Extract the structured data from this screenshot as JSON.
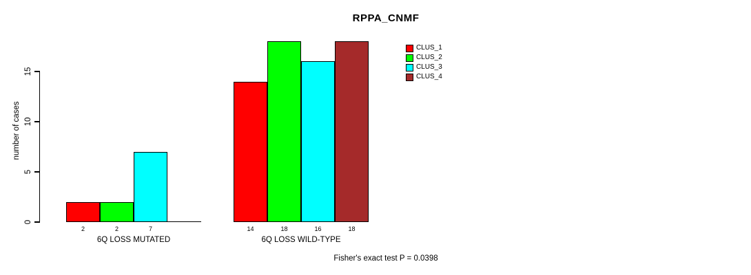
{
  "title": "RPPA_CNMF",
  "y_axis": {
    "label": "number of cases"
  },
  "footnote": "Fisher's exact test P = 0.0398",
  "legend": {
    "entries": [
      {
        "label": "CLUS_1",
        "color": "#FF0000"
      },
      {
        "label": "CLUS_2",
        "color": "#00FF00"
      },
      {
        "label": "CLUS_3",
        "color": "#00FFFF"
      },
      {
        "label": "CLUS_4",
        "color": "#A52A2A"
      }
    ]
  },
  "chart_data": {
    "type": "bar",
    "title": "RPPA_CNMF",
    "ylabel": "number of cases",
    "xlabel": "",
    "ylim": [
      0,
      15
    ],
    "yticks": [
      0,
      5,
      10,
      15
    ],
    "grid": false,
    "legend_position": "top-right",
    "series": [
      "CLUS_1",
      "CLUS_2",
      "CLUS_3",
      "CLUS_4"
    ],
    "series_colors": [
      "#FF0000",
      "#00FF00",
      "#00FFFF",
      "#A52A2A"
    ],
    "groups": [
      {
        "label": "6Q LOSS MUTATED",
        "values": [
          2,
          2,
          7,
          0
        ],
        "value_labels": [
          "2",
          "2",
          "7",
          ""
        ]
      },
      {
        "label": "6Q LOSS WILD-TYPE",
        "values": [
          14,
          18,
          16,
          18
        ],
        "value_labels": [
          "14",
          "18",
          "16",
          "18"
        ]
      }
    ],
    "annotation": "Fisher's exact test P = 0.0398"
  }
}
